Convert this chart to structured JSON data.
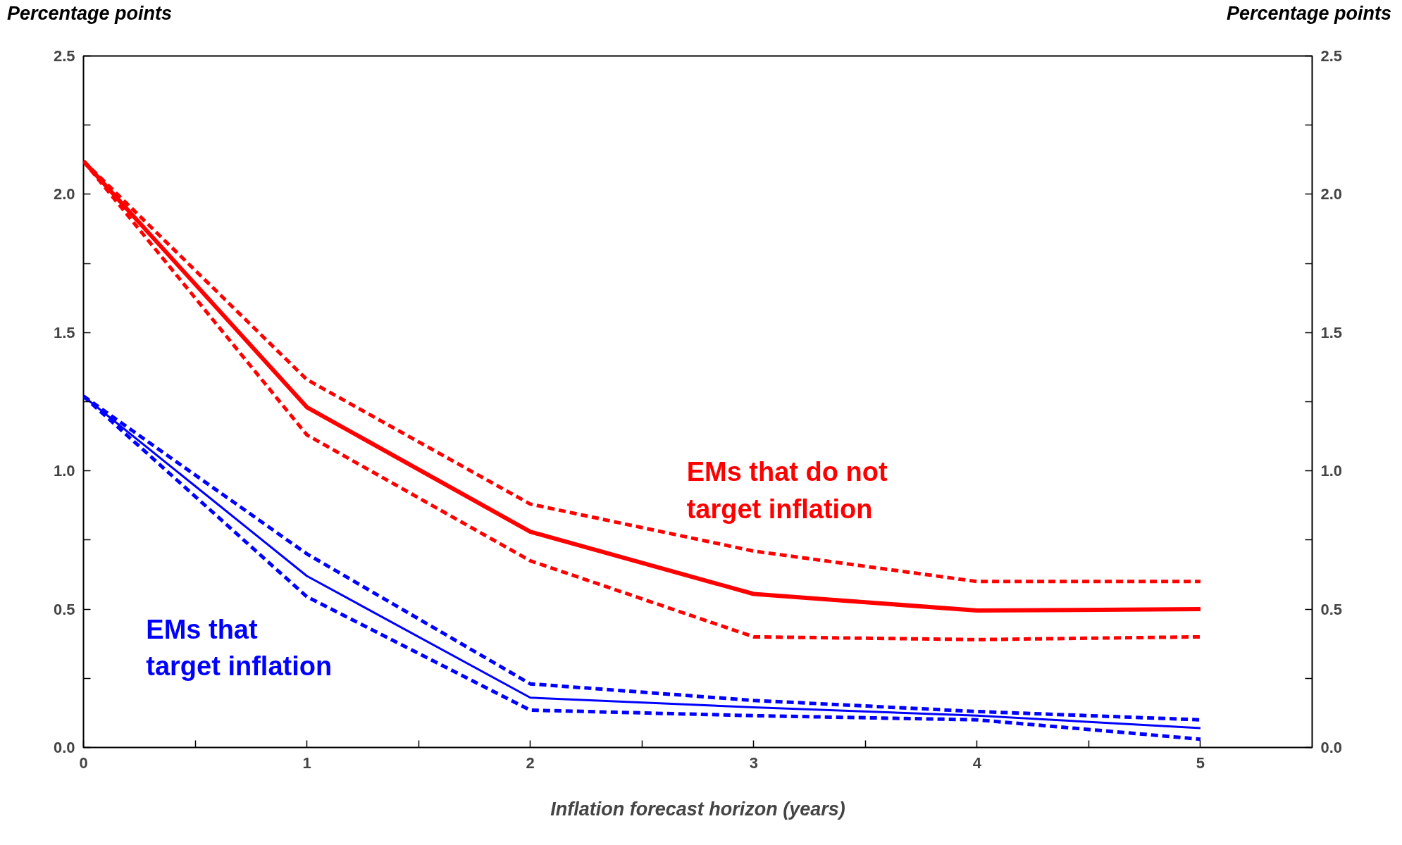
{
  "chart_data": {
    "type": "line",
    "xlabel": "Inflation forecast horizon (years)",
    "ylabel": "Percentage points",
    "y2label": "Percentage points",
    "x": [
      0,
      1,
      2,
      3,
      4,
      5
    ],
    "series": [
      {
        "name": "EMs that do not\ntarget inflation",
        "color": "#ff0000",
        "values": [
          2.12,
          1.23,
          0.78,
          0.555,
          0.495,
          0.5
        ],
        "line_style": "solid"
      },
      {
        "color": "#ff0000",
        "values": [
          2.12,
          1.33,
          0.88,
          0.71,
          0.6,
          0.6
        ],
        "line_style": "dashed"
      },
      {
        "color": "#ff0000",
        "values": [
          2.12,
          1.13,
          0.675,
          0.4,
          0.39,
          0.4
        ],
        "line_style": "dashed"
      },
      {
        "name": "EMs that\ntarget inflation",
        "color": "#0000ff",
        "values": [
          1.27,
          0.62,
          0.18,
          0.145,
          0.115,
          0.07
        ],
        "line_style": "solid"
      },
      {
        "color": "#0000ff",
        "values": [
          1.27,
          0.7,
          0.23,
          0.17,
          0.13,
          0.1
        ],
        "line_style": "dashed"
      },
      {
        "color": "#0000ff",
        "values": [
          1.27,
          0.545,
          0.135,
          0.115,
          0.1,
          0.03
        ],
        "line_style": "dashed"
      }
    ],
    "xlim": [
      0,
      5.5
    ],
    "xticks": [
      0,
      {
        "value": 0.5,
        "label": null
      },
      1,
      {
        "value": 1.5,
        "label": null
      },
      2,
      {
        "value": 2.5,
        "label": null
      },
      3,
      {
        "value": 3.5,
        "label": null
      },
      4,
      {
        "value": 4.5,
        "label": null
      },
      5
    ],
    "ylim": [
      0,
      2.5
    ],
    "yticks": [
      {
        "value": 0,
        "label": "0.0"
      },
      {
        "value": 0.25,
        "label": null
      },
      {
        "value": 0.5,
        "label": "0.5"
      },
      {
        "value": 0.75,
        "label": null
      },
      {
        "value": 1,
        "label": "1.0"
      },
      {
        "value": 1.25,
        "label": null
      },
      {
        "value": 1.5,
        "label": "1.5"
      },
      {
        "value": 1.75,
        "label": null
      },
      {
        "value": 2,
        "label": "2.0"
      },
      {
        "value": 2.25,
        "label": null
      },
      {
        "value": 2.5,
        "label": "2.5"
      }
    ],
    "y2lim": [
      0,
      2.5
    ],
    "y2ticks": [
      {
        "value": 0,
        "label": "0.0"
      },
      {
        "value": 0.25,
        "label": null
      },
      {
        "value": 0.5,
        "label": "0.5"
      },
      {
        "value": 0.75,
        "label": null
      },
      {
        "value": 1,
        "label": "1.0"
      },
      {
        "value": 1.25,
        "label": null
      },
      {
        "value": 1.5,
        "label": "1.5"
      },
      {
        "value": 1.75,
        "label": null
      },
      {
        "value": 2,
        "label": "2.0"
      },
      {
        "value": 2.25,
        "label": null
      },
      {
        "value": 2.5,
        "label": "2.5"
      }
    ],
    "grid": false
  }
}
